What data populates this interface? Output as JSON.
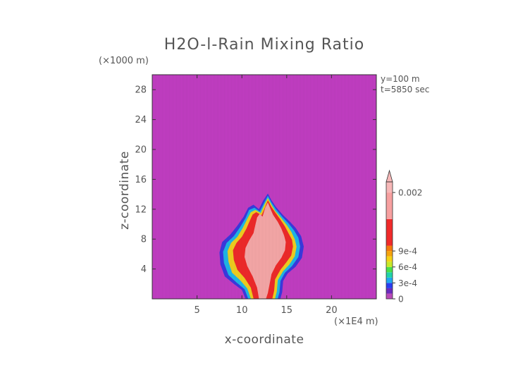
{
  "chart_data": {
    "type": "heatmap",
    "title": "H2O-l-Rain Mixing Ratio",
    "xlabel": "x-coordinate",
    "ylabel": "z-coordinate",
    "x_unit": "(×1E4 m)",
    "y_unit": "(×1000 m)",
    "annotations": [
      "y=100 m",
      "t=5850 sec"
    ],
    "x_ticks": [
      "5",
      "10",
      "15",
      "20"
    ],
    "x_tick_values": [
      5,
      10,
      15,
      20
    ],
    "y_ticks": [
      "4",
      "8",
      "12",
      "16",
      "20",
      "24",
      "28"
    ],
    "y_tick_values": [
      4,
      8,
      12,
      16,
      20,
      24,
      28
    ],
    "xlim": [
      0,
      25
    ],
    "ylim": [
      0,
      30
    ],
    "background_value": 0,
    "background_color": "#c23ec3",
    "colorbar": {
      "labels": [
        "0",
        "3e-4",
        "6e-4",
        "9e-4",
        "0.002"
      ],
      "label_values": [
        0,
        0.0003,
        0.0006,
        0.0009,
        0.002
      ],
      "range": [
        0,
        0.0022
      ],
      "colors": [
        {
          "from": 0,
          "to": 0.0001,
          "color": "#b84ab8"
        },
        {
          "from": 0.0001,
          "to": 0.0002,
          "color": "#6a2bbd"
        },
        {
          "from": 0.0002,
          "to": 0.0003,
          "color": "#2a3ef0"
        },
        {
          "from": 0.0003,
          "to": 0.0004,
          "color": "#1fa8f0"
        },
        {
          "from": 0.0004,
          "to": 0.0005,
          "color": "#20d2a8"
        },
        {
          "from": 0.0005,
          "to": 0.0006,
          "color": "#4ae04a"
        },
        {
          "from": 0.0006,
          "to": 0.0007,
          "color": "#c8e828"
        },
        {
          "from": 0.0007,
          "to": 0.0008,
          "color": "#f5d215"
        },
        {
          "from": 0.0008,
          "to": 0.0009,
          "color": "#f5a40e"
        },
        {
          "from": 0.0009,
          "to": 0.001,
          "color": "#f57a0c"
        },
        {
          "from": 0.001,
          "to": 0.0015,
          "color": "#f02a2a"
        },
        {
          "from": 0.0015,
          "to": 0.002,
          "color": "#f7a0a0"
        },
        {
          "from": 0.002,
          "to": 0.0022,
          "color": "#f7b8b8"
        }
      ]
    },
    "field": [
      {
        "name": "outer-envelope",
        "value": 0.0002,
        "color": "#3a3ae0",
        "points": [
          [
            8.1,
            3.0
          ],
          [
            7.6,
            4.6
          ],
          [
            7.5,
            6.2
          ],
          [
            7.8,
            7.6
          ],
          [
            8.7,
            8.6
          ],
          [
            9.5,
            9.8
          ],
          [
            10.2,
            11.0
          ],
          [
            10.7,
            12.2
          ],
          [
            11.3,
            12.6
          ],
          [
            11.9,
            12.0
          ],
          [
            12.4,
            13.2
          ],
          [
            12.9,
            14.1
          ],
          [
            13.3,
            13.2
          ],
          [
            13.8,
            12.3
          ],
          [
            14.6,
            11.2
          ],
          [
            15.3,
            10.4
          ],
          [
            16.0,
            9.5
          ],
          [
            16.6,
            8.4
          ],
          [
            16.9,
            7.0
          ],
          [
            16.7,
            5.5
          ],
          [
            16.0,
            4.3
          ],
          [
            15.1,
            3.4
          ],
          [
            14.6,
            2.4
          ],
          [
            14.5,
            0.9
          ],
          [
            14.3,
            0.05
          ],
          [
            10.4,
            0.05
          ],
          [
            10.0,
            1.2
          ],
          [
            9.1,
            2.0
          ]
        ]
      },
      {
        "name": "cyan-band",
        "value": 0.0004,
        "color": "#1fb8e8",
        "points": [
          [
            8.5,
            3.2
          ],
          [
            8.0,
            4.8
          ],
          [
            7.9,
            6.3
          ],
          [
            8.3,
            7.5
          ],
          [
            9.1,
            8.4
          ],
          [
            9.8,
            9.6
          ],
          [
            10.4,
            10.8
          ],
          [
            10.8,
            11.9
          ],
          [
            11.4,
            12.2
          ],
          [
            12.0,
            11.7
          ],
          [
            12.5,
            12.9
          ],
          [
            12.9,
            13.8
          ],
          [
            13.3,
            12.9
          ],
          [
            13.8,
            12.0
          ],
          [
            14.5,
            11.0
          ],
          [
            15.2,
            10.1
          ],
          [
            15.8,
            9.2
          ],
          [
            16.3,
            8.2
          ],
          [
            16.5,
            7.0
          ],
          [
            16.3,
            5.6
          ],
          [
            15.6,
            4.4
          ],
          [
            14.8,
            3.5
          ],
          [
            14.3,
            2.4
          ],
          [
            14.2,
            0.9
          ],
          [
            14.0,
            0.05
          ],
          [
            10.7,
            0.05
          ],
          [
            10.3,
            1.3
          ],
          [
            9.4,
            2.2
          ]
        ]
      },
      {
        "name": "yellow-band",
        "value": 0.0007,
        "color": "#f0d020",
        "points": [
          [
            8.9,
            3.5
          ],
          [
            8.5,
            5.0
          ],
          [
            8.4,
            6.4
          ],
          [
            8.8,
            7.5
          ],
          [
            9.5,
            8.3
          ],
          [
            10.1,
            9.5
          ],
          [
            10.6,
            10.7
          ],
          [
            11.0,
            11.6
          ],
          [
            11.5,
            11.9
          ],
          [
            12.1,
            11.5
          ],
          [
            12.5,
            12.6
          ],
          [
            12.9,
            13.5
          ],
          [
            13.3,
            12.6
          ],
          [
            13.7,
            11.8
          ],
          [
            14.4,
            10.8
          ],
          [
            15.0,
            9.9
          ],
          [
            15.5,
            9.0
          ],
          [
            15.9,
            8.0
          ],
          [
            16.1,
            7.0
          ],
          [
            15.9,
            5.7
          ],
          [
            15.3,
            4.6
          ],
          [
            14.6,
            3.7
          ],
          [
            14.0,
            2.5
          ],
          [
            13.9,
            1.0
          ],
          [
            13.7,
            0.05
          ],
          [
            11.0,
            0.05
          ],
          [
            10.6,
            1.4
          ],
          [
            9.8,
            2.5
          ]
        ]
      },
      {
        "name": "red-core",
        "value": 0.0012,
        "color": "#f02a2a",
        "points": [
          [
            9.5,
            3.9
          ],
          [
            9.1,
            5.2
          ],
          [
            9.0,
            6.5
          ],
          [
            9.4,
            7.5
          ],
          [
            10.0,
            8.3
          ],
          [
            10.5,
            9.4
          ],
          [
            10.9,
            10.5
          ],
          [
            11.2,
            11.3
          ],
          [
            11.6,
            11.6
          ],
          [
            12.2,
            11.2
          ],
          [
            12.6,
            12.3
          ],
          [
            12.9,
            13.2
          ],
          [
            13.3,
            12.3
          ],
          [
            13.7,
            11.6
          ],
          [
            14.3,
            10.6
          ],
          [
            14.8,
            9.7
          ],
          [
            15.2,
            8.8
          ],
          [
            15.6,
            7.9
          ],
          [
            15.7,
            7.0
          ],
          [
            15.5,
            5.8
          ],
          [
            14.9,
            4.8
          ],
          [
            14.3,
            3.9
          ],
          [
            13.7,
            2.6
          ],
          [
            13.6,
            1.1
          ],
          [
            13.4,
            0.05
          ],
          [
            11.3,
            0.05
          ],
          [
            11.0,
            1.5
          ],
          [
            10.3,
            2.8
          ]
        ]
      },
      {
        "name": "pink-core",
        "value": 0.0018,
        "color": "#f7a8a8",
        "points": [
          [
            10.6,
            4.4
          ],
          [
            10.3,
            5.6
          ],
          [
            10.4,
            6.8
          ],
          [
            10.8,
            7.8
          ],
          [
            11.3,
            8.8
          ],
          [
            11.5,
            9.9
          ],
          [
            11.7,
            10.9
          ],
          [
            12.0,
            11.4
          ],
          [
            12.3,
            11.0
          ],
          [
            12.6,
            12.2
          ],
          [
            12.9,
            12.9
          ],
          [
            13.2,
            12.0
          ],
          [
            13.5,
            11.2
          ],
          [
            14.0,
            10.3
          ],
          [
            14.4,
            9.4
          ],
          [
            14.7,
            8.5
          ],
          [
            14.9,
            7.6
          ],
          [
            14.8,
            6.5
          ],
          [
            14.4,
            5.5
          ],
          [
            13.8,
            4.5
          ],
          [
            13.3,
            3.3
          ],
          [
            13.1,
            2.0
          ],
          [
            12.9,
            0.8
          ],
          [
            12.7,
            0.05
          ],
          [
            11.9,
            0.05
          ],
          [
            11.7,
            1.5
          ],
          [
            11.2,
            3.0
          ]
        ]
      }
    ]
  }
}
